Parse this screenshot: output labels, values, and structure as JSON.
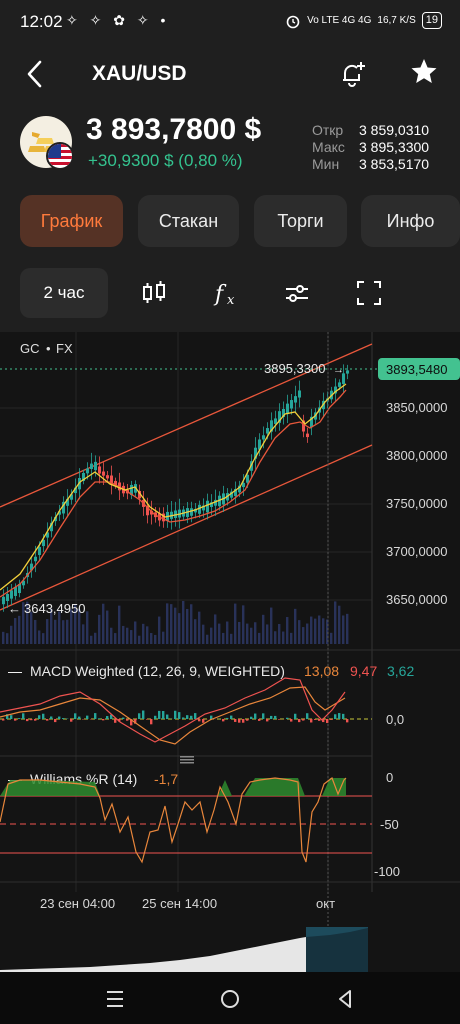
{
  "status": {
    "time": "12:02",
    "left_icons": "✧ ✧ ✿ ✧ •",
    "network": "Vo LTE 4G 4G",
    "speed": "16,7 K/S",
    "battery": "19"
  },
  "header": {
    "title": "XAU/USD"
  },
  "quote": {
    "price": "3 893,7800 $",
    "change": "+30,9300 $ (0,80 %)",
    "stats": [
      {
        "label": "Откр",
        "value": "3 859,0310"
      },
      {
        "label": "Макс",
        "value": "3 895,3300"
      },
      {
        "label": "Мин",
        "value": "3 853,5170"
      }
    ]
  },
  "tabs": [
    {
      "label": "График",
      "active": true
    },
    {
      "label": "Стакан",
      "active": false
    },
    {
      "label": "Торги",
      "active": false
    },
    {
      "label": "Инфо",
      "active": false
    }
  ],
  "toolbar": {
    "timeframe": "2 час"
  },
  "chart": {
    "symbol": "GC",
    "source": "FX",
    "high_label": "3895,3300",
    "low_label": "3643,4950",
    "current_price": "3893,5480",
    "y_ticks": [
      "3850,0000",
      "3800,0000",
      "3750,0000",
      "3700,0000",
      "3650,0000"
    ],
    "x_ticks": [
      "23 сен 04:00",
      "25 сен 14:00",
      "окт"
    ],
    "colors": {
      "up": "#26a69a",
      "down": "#ef5350",
      "ma_fast": "#f2d03b",
      "ma_slow": "#e8573b",
      "channel": "#e8573b",
      "price_tag": "#43c290"
    }
  },
  "macd": {
    "title": "MACD Weighted (12, 26, 9, WEIGHTED)",
    "v1": "13,08",
    "v2": "9,47",
    "v3": "3,62",
    "zero_label": "0,0"
  },
  "williams": {
    "title": "Williams %R (14)",
    "value": "-1,7",
    "ticks": [
      "0",
      "-50",
      "-100"
    ]
  }
}
